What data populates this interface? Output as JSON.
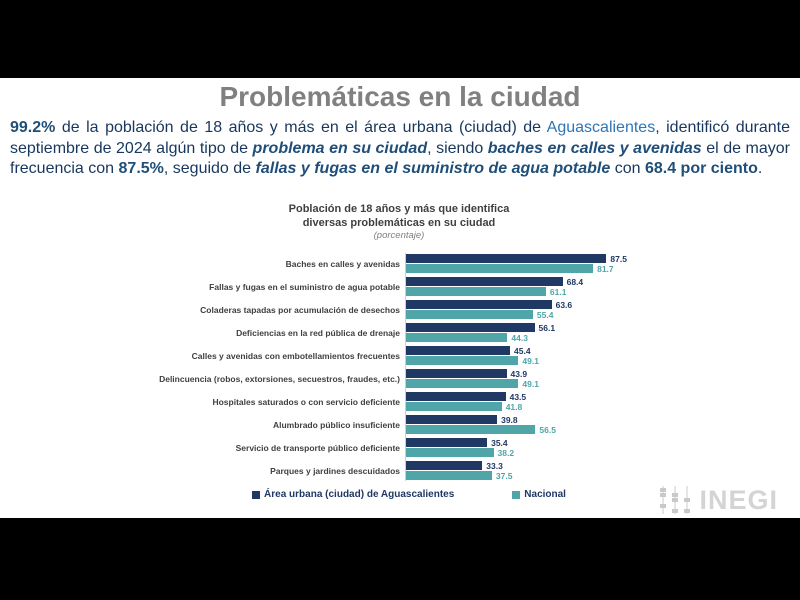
{
  "slide": {
    "title": "Problemáticas en la ciudad",
    "paragraph": {
      "segments": [
        {
          "style": "bold-blue",
          "text": "99.2%"
        },
        {
          "style": "normal",
          "text": " de la población de 18 años y más en el área urbana (ciudad) de "
        },
        {
          "style": "light-blue",
          "text": "Aguascalientes"
        },
        {
          "style": "normal",
          "text": ", identificó durante septiembre de 2024 algún tipo de "
        },
        {
          "style": "bold-italic-blue",
          "text": "problema en su ciudad"
        },
        {
          "style": "normal",
          "text": ", siendo "
        },
        {
          "style": "bold-italic-blue",
          "text": "baches en calles y avenidas"
        },
        {
          "style": "normal",
          "text": " el de mayor frecuencia con "
        },
        {
          "style": "bold-blue",
          "text": "87.5%"
        },
        {
          "style": "normal",
          "text": ", seguido de "
        },
        {
          "style": "bold-italic-blue",
          "text": "fallas y fugas en el suministro de agua potable"
        },
        {
          "style": "normal",
          "text": " con "
        },
        {
          "style": "bold-blue",
          "text": "68.4 por ciento"
        },
        {
          "style": "normal",
          "text": "."
        }
      ]
    },
    "colors": {
      "title_gray": "#808080",
      "body_navy": "#17375e",
      "emphasis_blue": "#1f4e79",
      "link_blue": "#2e75b6"
    }
  },
  "chart_data": {
    "type": "bar",
    "orientation": "horizontal",
    "title": "Población de 18 años y más que identifica diversas problemáticas en su ciudad",
    "title_lines": [
      "Población de 18 años y más que identifica",
      "diversas problemáticas en su ciudad"
    ],
    "subtitle": "(porcentaje)",
    "xlim": [
      0,
      100
    ],
    "grid": false,
    "legend_position": "bottom",
    "categories": [
      "Baches en calles y avenidas",
      "Fallas y fugas en el suministro de agua potable",
      "Coladeras tapadas por acumulación de desechos",
      "Deficiencias en la red pública de drenaje",
      "Calles y avenidas con embotellamientos frecuentes",
      "Delincuencia (robos, extorsiones, secuestros, fraudes, etc.)",
      "Hospitales saturados o con servicio deficiente",
      "Alumbrado público insuficiente",
      "Servicio de transporte público deficiente",
      "Parques y jardines descuidados"
    ],
    "series": [
      {
        "name": "Área urbana (ciudad) de Aguascalientes",
        "color": "#1f3864",
        "values": [
          87.5,
          68.4,
          63.6,
          56.1,
          45.4,
          43.9,
          43.5,
          39.8,
          35.4,
          33.3
        ]
      },
      {
        "name": "Nacional",
        "color": "#4fa5a8",
        "values": [
          81.7,
          61.1,
          55.4,
          44.3,
          49.1,
          49.1,
          41.8,
          56.5,
          38.2,
          37.5
        ]
      }
    ]
  },
  "logo": {
    "text": "INEGI"
  }
}
